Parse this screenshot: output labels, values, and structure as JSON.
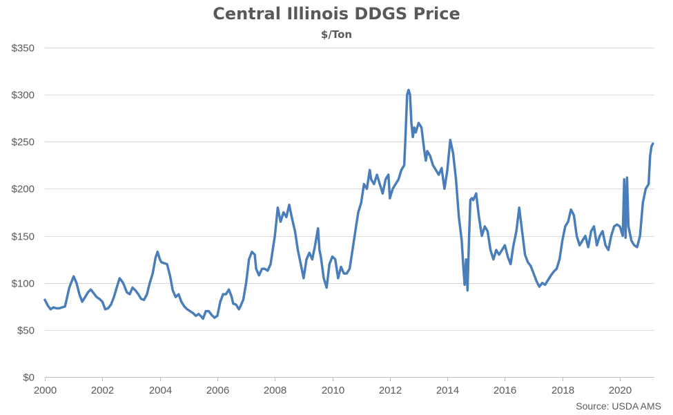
{
  "chart_data": {
    "type": "line",
    "title": "Central Illinois DDGS Price",
    "subtitle": "$/Ton",
    "source": "Source: USDA AMS",
    "xlabel": "",
    "ylabel": "",
    "xlim": [
      2000,
      2021.2
    ],
    "ylim": [
      0,
      350
    ],
    "y_ticks": [
      0,
      50,
      100,
      150,
      200,
      250,
      300,
      350
    ],
    "y_tick_labels": [
      "$0",
      "$50",
      "$100",
      "$150",
      "$200",
      "$250",
      "$300",
      "$350"
    ],
    "x_ticks": [
      2000,
      2002,
      2004,
      2006,
      2008,
      2010,
      2012,
      2014,
      2016,
      2018,
      2020
    ],
    "x_tick_labels": [
      "2000",
      "2002",
      "2004",
      "2006",
      "2008",
      "2010",
      "2012",
      "2014",
      "2016",
      "2018",
      "2020"
    ],
    "grid": "horizontal",
    "legend": "none",
    "line_color": "#4a7ebb",
    "series": [
      {
        "x": [
          2000.0,
          2000.1,
          2000.2,
          2000.3,
          2000.4,
          2000.5,
          2000.7,
          2000.85,
          2001.0,
          2001.1,
          2001.2,
          2001.3,
          2001.4,
          2001.5,
          2001.6,
          2001.8,
          2001.9,
          2002.0,
          2002.1,
          2002.2,
          2002.3,
          2002.4,
          2002.5,
          2002.6,
          2002.7,
          2002.75,
          2002.85,
          2002.95,
          2003.05,
          2003.15,
          2003.25,
          2003.35,
          2003.45,
          2003.55,
          2003.65,
          2003.75,
          2003.85,
          2003.92,
          2004.0,
          2004.05,
          2004.15,
          2004.25,
          2004.35,
          2004.45,
          2004.55,
          2004.65,
          2004.75,
          2004.85,
          2004.95,
          2005.05,
          2005.15,
          2005.25,
          2005.35,
          2005.45,
          2005.5,
          2005.6,
          2005.7,
          2005.8,
          2005.9,
          2006.0,
          2006.1,
          2006.2,
          2006.3,
          2006.4,
          2006.5,
          2006.55,
          2006.65,
          2006.75,
          2006.8,
          2006.9,
          2007.0,
          2007.1,
          2007.2,
          2007.3,
          2007.35,
          2007.45,
          2007.55,
          2007.65,
          2007.75,
          2007.85,
          2007.95,
          2008.0,
          2008.1,
          2008.2,
          2008.3,
          2008.4,
          2008.5,
          2008.6,
          2008.7,
          2008.8,
          2008.9,
          2009.0,
          2009.1,
          2009.2,
          2009.3,
          2009.4,
          2009.5,
          2009.55,
          2009.6,
          2009.7,
          2009.75,
          2009.8,
          2009.9,
          2010.0,
          2010.1,
          2010.2,
          2010.3,
          2010.4,
          2010.5,
          2010.6,
          2010.7,
          2010.8,
          2010.9,
          2011.0,
          2011.1,
          2011.2,
          2011.3,
          2011.35,
          2011.45,
          2011.55,
          2011.65,
          2011.75,
          2011.85,
          2011.95,
          2012.0,
          2012.1,
          2012.2,
          2012.3,
          2012.4,
          2012.5,
          2012.55,
          2012.6,
          2012.65,
          2012.7,
          2012.75,
          2012.8,
          2012.85,
          2012.9,
          2013.0,
          2013.1,
          2013.2,
          2013.25,
          2013.3,
          2013.4,
          2013.5,
          2013.6,
          2013.7,
          2013.8,
          2013.9,
          2014.0,
          2014.1,
          2014.2,
          2014.3,
          2014.4,
          2014.5,
          2014.55,
          2014.6,
          2014.65,
          2014.7,
          2014.75,
          2014.8,
          2014.85,
          2014.9,
          2015.0,
          2015.1,
          2015.2,
          2015.3,
          2015.4,
          2015.5,
          2015.6,
          2015.7,
          2015.8,
          2015.9,
          2016.0,
          2016.1,
          2016.2,
          2016.3,
          2016.4,
          2016.5,
          2016.6,
          2016.7,
          2016.8,
          2016.9,
          2017.0,
          2017.1,
          2017.2,
          2017.3,
          2017.4,
          2017.5,
          2017.6,
          2017.7,
          2017.8,
          2017.9,
          2018.0,
          2018.1,
          2018.2,
          2018.3,
          2018.4,
          2018.5,
          2018.6,
          2018.7,
          2018.8,
          2018.9,
          2019.0,
          2019.1,
          2019.2,
          2019.3,
          2019.4,
          2019.5,
          2019.6,
          2019.7,
          2019.8,
          2019.9,
          2020.0,
          2020.1,
          2020.15,
          2020.2,
          2020.25,
          2020.3,
          2020.4,
          2020.5,
          2020.6,
          2020.7,
          2020.8,
          2020.9,
          2021.0,
          2021.05,
          2021.1,
          2021.15
        ],
        "y": [
          82,
          76,
          72,
          74,
          73,
          73,
          75,
          95,
          107,
          100,
          88,
          80,
          85,
          90,
          93,
          85,
          83,
          80,
          72,
          73,
          77,
          85,
          95,
          105,
          101,
          98,
          90,
          88,
          95,
          92,
          88,
          83,
          82,
          88,
          100,
          110,
          127,
          133,
          125,
          122,
          121,
          120,
          108,
          92,
          85,
          88,
          80,
          75,
          72,
          70,
          68,
          65,
          67,
          64,
          62,
          70,
          70,
          66,
          63,
          65,
          80,
          88,
          88,
          93,
          85,
          78,
          77,
          72,
          75,
          82,
          100,
          125,
          133,
          130,
          115,
          108,
          115,
          115,
          113,
          120,
          140,
          150,
          180,
          165,
          175,
          170,
          183,
          168,
          155,
          135,
          120,
          105,
          125,
          132,
          125,
          140,
          158,
          135,
          128,
          105,
          100,
          95,
          120,
          128,
          125,
          105,
          117,
          110,
          110,
          115,
          135,
          155,
          175,
          185,
          205,
          200,
          220,
          210,
          205,
          215,
          205,
          195,
          210,
          215,
          190,
          200,
          205,
          210,
          220,
          225,
          260,
          300,
          305,
          300,
          270,
          255,
          265,
          260,
          270,
          265,
          240,
          230,
          240,
          235,
          225,
          220,
          215,
          222,
          200,
          220,
          252,
          238,
          210,
          170,
          145,
          120,
          98,
          125,
          92,
          145,
          188,
          190,
          188,
          195,
          170,
          150,
          160,
          155,
          135,
          125,
          135,
          130,
          135,
          140,
          128,
          120,
          140,
          155,
          180,
          155,
          130,
          122,
          118,
          110,
          102,
          96,
          100,
          98,
          103,
          108,
          112,
          115,
          125,
          145,
          160,
          165,
          178,
          172,
          150,
          140,
          145,
          150,
          138,
          155,
          160,
          140,
          150,
          155,
          140,
          135,
          150,
          160,
          162,
          160,
          150,
          210,
          148,
          212,
          160,
          145,
          140,
          138,
          150,
          185,
          200,
          205,
          235,
          245,
          248
        ]
      }
    ]
  }
}
